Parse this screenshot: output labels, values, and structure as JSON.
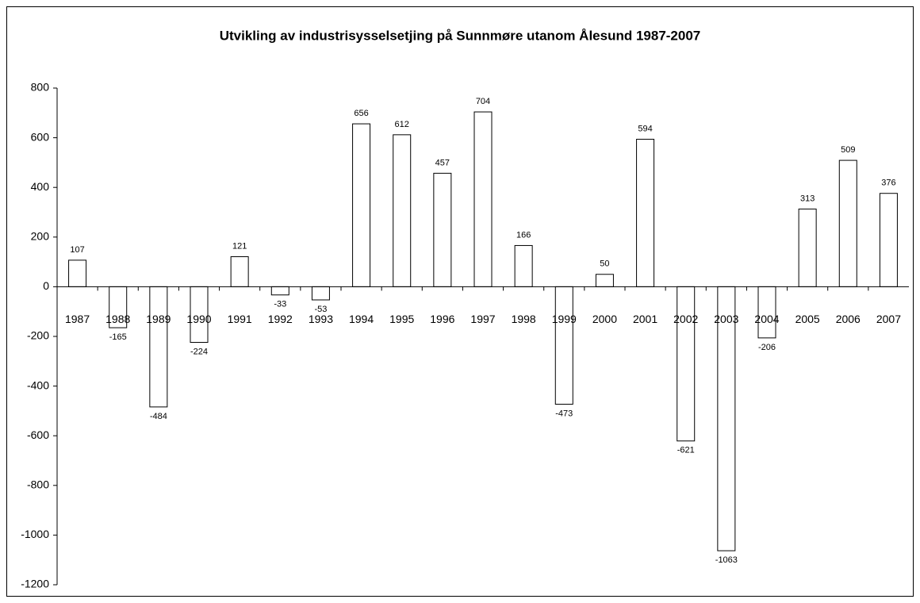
{
  "chart_data": {
    "type": "bar",
    "title": "Utvikling av industrisysselsetjing på Sunnmøre utanom Ålesund 1987-2007",
    "categories": [
      "1987",
      "1988",
      "1989",
      "1990",
      "1991",
      "1992",
      "1993",
      "1994",
      "1995",
      "1996",
      "1997",
      "1998",
      "1999",
      "2000",
      "2001",
      "2002",
      "2003",
      "2004",
      "2005",
      "2006",
      "2007"
    ],
    "values": [
      107,
      -165,
      -484,
      -224,
      121,
      -33,
      -53,
      656,
      612,
      457,
      704,
      166,
      -473,
      50,
      594,
      -621,
      -1063,
      -206,
      313,
      509,
      376
    ],
    "color": "#ffffff",
    "ylim": [
      -1200,
      800
    ],
    "yticks": [
      -1200,
      -1000,
      -800,
      -600,
      -400,
      -200,
      0,
      200,
      400,
      600,
      800
    ],
    "grid": false
  }
}
